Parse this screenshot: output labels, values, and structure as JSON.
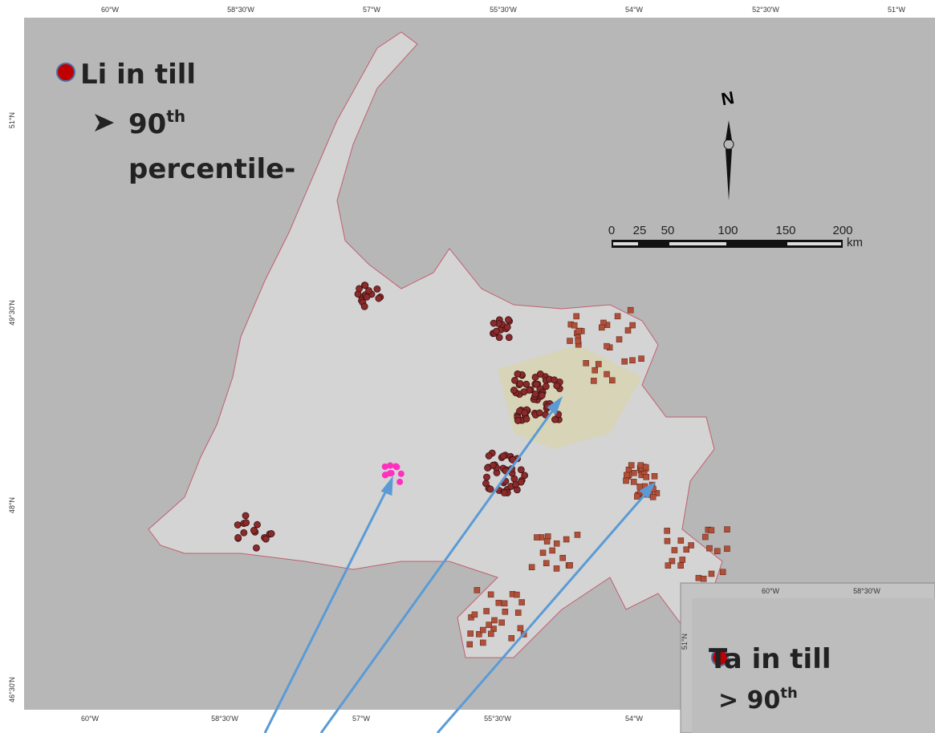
{
  "map": {
    "top_labels": [
      "60°W",
      "58°30'W",
      "57°W",
      "55°30'W",
      "54°W",
      "52°30'W",
      "51°W"
    ],
    "bottom_labels": [
      "60°W",
      "58°30'W",
      "57°W",
      "55°30'W",
      "54°W"
    ],
    "left_labels": [
      "51°N",
      "49°30'N",
      "48°N",
      "46°30'N"
    ],
    "legend": {
      "title": "Li in till",
      "threshold": "90",
      "threshold_suffix": "th",
      "threshold_word": "percentile-"
    },
    "north_label": "N",
    "scale_labels": [
      "0",
      "25",
      "50",
      "100",
      "150",
      "200"
    ],
    "scale_unit": "km"
  },
  "inset": {
    "top_labels": [
      "60°W",
      "58°30'W"
    ],
    "left_label": "51°N",
    "legend": {
      "title": "Ta in till",
      "threshold": "> 90",
      "threshold_suffix": "th"
    }
  }
}
